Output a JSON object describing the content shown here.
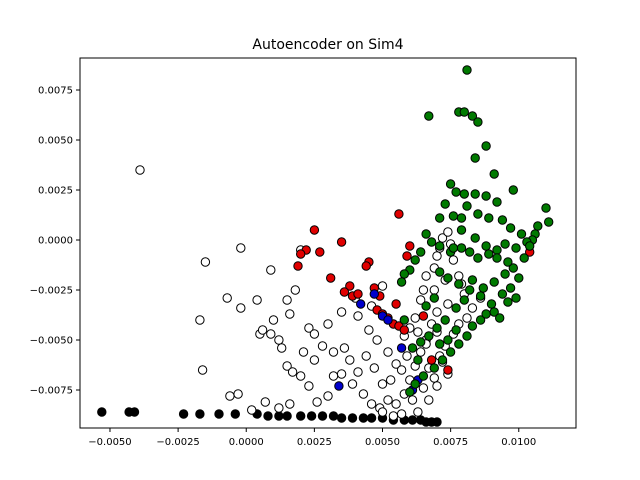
{
  "chart_data": {
    "type": "scatter",
    "title": "Autoencoder on Sim4",
    "xlabel": "",
    "ylabel": "",
    "xlim": [
      -0.0061,
      0.0121
    ],
    "ylim": [
      -0.0094,
      0.0091
    ],
    "grid": false,
    "x_ticks": [
      -0.005,
      -0.0025,
      0.0,
      0.0025,
      0.005,
      0.0075,
      0.01
    ],
    "x_tick_labels": [
      "−0.0050",
      "−0.0025",
      "0.0000",
      "0.0025",
      "0.0050",
      "0.0075",
      "0.0100"
    ],
    "y_ticks": [
      -0.0075,
      -0.005,
      -0.0025,
      0.0,
      0.0025,
      0.005,
      0.0075
    ],
    "y_tick_labels": [
      "−0.0075",
      "−0.0050",
      "−0.0025",
      "0.0000",
      "0.0025",
      "0.0050",
      "0.0075"
    ],
    "series": [
      {
        "color": "#000000",
        "points": [
          [
            -0.0053,
            -0.0086
          ],
          [
            -0.0043,
            -0.0086
          ],
          [
            -0.0041,
            -0.0086
          ],
          [
            -0.0023,
            -0.0087
          ],
          [
            -0.0017,
            -0.0087
          ],
          [
            -0.001,
            -0.0087
          ],
          [
            -0.0004,
            -0.0087
          ],
          [
            0.0004,
            -0.0087
          ],
          [
            0.0008,
            -0.0088
          ],
          [
            0.0012,
            -0.0088
          ],
          [
            0.0015,
            -0.0088
          ],
          [
            0.002,
            -0.0088
          ],
          [
            0.0024,
            -0.0088
          ],
          [
            0.0028,
            -0.0088
          ],
          [
            0.0032,
            -0.0088
          ],
          [
            0.0035,
            -0.0089
          ],
          [
            0.0039,
            -0.0089
          ],
          [
            0.0043,
            -0.0089
          ],
          [
            0.0046,
            -0.0089
          ],
          [
            0.005,
            -0.0089
          ],
          [
            0.0054,
            -0.009
          ],
          [
            0.0058,
            -0.009
          ],
          [
            0.0061,
            -0.009
          ],
          [
            0.0064,
            -0.009
          ],
          [
            0.0066,
            -0.0091
          ],
          [
            0.0068,
            -0.0091
          ],
          [
            0.007,
            -0.0091
          ]
        ]
      },
      {
        "color": "#ffffff",
        "points": [
          [
            -0.0039,
            0.0035
          ],
          [
            -0.0002,
            -0.0004
          ],
          [
            -0.0015,
            -0.0011
          ],
          [
            -0.0007,
            -0.0029
          ],
          [
            -0.0002,
            -0.0034
          ],
          [
            -0.0017,
            -0.004
          ],
          [
            -0.0016,
            -0.0065
          ],
          [
            -0.0006,
            -0.0078
          ],
          [
            -0.0003,
            -0.0077
          ],
          [
            0.0004,
            -0.003
          ],
          [
            0.0009,
            -0.0015
          ],
          [
            0.0015,
            -0.003
          ],
          [
            0.002,
            -0.0005
          ],
          [
            0.0018,
            -0.0025
          ],
          [
            0.0016,
            -0.0037
          ],
          [
            0.0005,
            -0.0047
          ],
          [
            0.0009,
            -0.0047
          ],
          [
            0.0012,
            -0.005
          ],
          [
            0.0006,
            -0.0045
          ],
          [
            0.0013,
            -0.0054
          ],
          [
            0.0015,
            -0.0063
          ],
          [
            0.0023,
            -0.0044
          ],
          [
            0.0025,
            -0.0047
          ],
          [
            0.0028,
            -0.0053
          ],
          [
            0.0032,
            -0.0056
          ],
          [
            0.0036,
            -0.0054
          ],
          [
            0.0038,
            -0.006
          ],
          [
            0.0041,
            -0.0066
          ],
          [
            0.0041,
            -0.0038
          ],
          [
            0.0046,
            -0.0033
          ],
          [
            0.0048,
            -0.005
          ],
          [
            0.0052,
            -0.0056
          ],
          [
            0.0055,
            -0.0062
          ],
          [
            0.0058,
            -0.0048
          ],
          [
            0.006,
            -0.0044
          ],
          [
            0.0062,
            -0.0039
          ],
          [
            0.0064,
            -0.003
          ],
          [
            0.0065,
            -0.0025
          ],
          [
            0.0066,
            -0.0018
          ],
          [
            0.0069,
            -0.0014
          ],
          [
            0.007,
            -0.0008
          ],
          [
            0.0071,
            -0.0004
          ],
          [
            0.0072,
            0.0001
          ],
          [
            0.0074,
            0.0004
          ],
          [
            0.0075,
            -0.0002
          ],
          [
            0.0076,
            -0.001
          ],
          [
            0.0078,
            -0.0018
          ],
          [
            0.0079,
            -0.0022
          ],
          [
            0.008,
            -0.0027
          ],
          [
            0.0074,
            -0.0032
          ],
          [
            0.007,
            -0.0036
          ],
          [
            0.0068,
            -0.0042
          ],
          [
            0.0066,
            -0.005
          ],
          [
            0.0064,
            -0.0056
          ],
          [
            0.0062,
            -0.0063
          ],
          [
            0.006,
            -0.007
          ],
          [
            0.0058,
            -0.0077
          ],
          [
            0.0055,
            -0.0082
          ],
          [
            0.0052,
            -0.008
          ],
          [
            0.0049,
            -0.0084
          ],
          [
            0.0046,
            -0.0082
          ],
          [
            0.0043,
            -0.0077
          ],
          [
            0.0039,
            -0.0072
          ],
          [
            0.0035,
            -0.0067
          ],
          [
            0.0032,
            -0.0068
          ],
          [
            0.003,
            -0.0078
          ],
          [
            0.0026,
            -0.0081
          ],
          [
            0.0023,
            -0.0073
          ],
          [
            0.002,
            -0.0068
          ],
          [
            0.0016,
            -0.0082
          ],
          [
            0.0012,
            -0.0084
          ],
          [
            0.0007,
            -0.0081
          ],
          [
            0.0002,
            -0.0085
          ],
          [
            0.0071,
            -0.0058
          ],
          [
            0.0073,
            -0.0053
          ],
          [
            0.0076,
            -0.0047
          ],
          [
            0.0078,
            -0.0042
          ],
          [
            0.0081,
            -0.0039
          ],
          [
            0.0083,
            -0.0034
          ],
          [
            0.0086,
            -0.0029
          ],
          [
            0.0067,
            -0.0064
          ],
          [
            0.0069,
            -0.0069
          ],
          [
            0.0065,
            -0.0074
          ],
          [
            0.0061,
            -0.008
          ],
          [
            0.0063,
            -0.0086
          ],
          [
            0.0057,
            -0.0087
          ],
          [
            0.0054,
            -0.0088
          ],
          [
            0.005,
            -0.0086
          ],
          [
            0.0069,
            -0.0025
          ],
          [
            0.0073,
            -0.002
          ],
          [
            0.007,
            -0.0046
          ],
          [
            0.0066,
            -0.0052
          ],
          [
            0.0072,
            -0.0061
          ],
          [
            0.0074,
            -0.0067
          ],
          [
            0.007,
            -0.0073
          ],
          [
            0.0067,
            -0.008
          ],
          [
            0.004,
            -0.0029
          ],
          [
            0.005,
            -0.0023
          ],
          [
            0.0035,
            -0.0036
          ],
          [
            0.003,
            -0.0042
          ],
          [
            0.0025,
            -0.006
          ],
          [
            0.0021,
            -0.0056
          ],
          [
            0.0017,
            -0.0066
          ],
          [
            0.001,
            -0.004
          ],
          [
            0.0045,
            -0.0045
          ],
          [
            0.0044,
            -0.0058
          ],
          [
            0.0047,
            -0.0064
          ],
          [
            0.005,
            -0.0072
          ],
          [
            0.0053,
            -0.007
          ],
          [
            0.0057,
            -0.0065
          ],
          [
            0.0059,
            -0.0058
          ],
          [
            0.0063,
            -0.0046
          ]
        ]
      },
      {
        "color": "#e00000",
        "points": [
          [
            0.0025,
            0.0005
          ],
          [
            0.0022,
            -0.0005
          ],
          [
            0.002,
            -0.0007
          ],
          [
            0.0027,
            -0.0006
          ],
          [
            0.0019,
            -0.0013
          ],
          [
            0.0031,
            -0.0019
          ],
          [
            0.0035,
            -0.0001
          ],
          [
            0.0038,
            -0.0023
          ],
          [
            0.0039,
            -0.0028
          ],
          [
            0.0041,
            -0.0027
          ],
          [
            0.0036,
            -0.0026
          ],
          [
            0.0045,
            -0.0011
          ],
          [
            0.0044,
            -0.0013
          ],
          [
            0.0047,
            -0.0024
          ],
          [
            0.0049,
            -0.0028
          ],
          [
            0.0048,
            -0.0035
          ],
          [
            0.005,
            -0.0037
          ],
          [
            0.0052,
            -0.0039
          ],
          [
            0.0054,
            -0.0042
          ],
          [
            0.0056,
            -0.0043
          ],
          [
            0.0058,
            -0.0045
          ],
          [
            0.0055,
            -0.0032
          ],
          [
            0.006,
            -0.0003
          ],
          [
            0.0059,
            -0.0008
          ],
          [
            0.0056,
            0.0013
          ],
          [
            0.0065,
            -0.0038
          ],
          [
            0.0068,
            -0.006
          ],
          [
            0.0074,
            -0.0065
          ],
          [
            0.0104,
            -0.0006
          ]
        ]
      },
      {
        "color": "#0000cc",
        "points": [
          [
            0.0042,
            -0.0032
          ],
          [
            0.0047,
            -0.0027
          ],
          [
            0.005,
            -0.0038
          ],
          [
            0.0052,
            -0.004
          ],
          [
            0.0057,
            -0.0054
          ],
          [
            0.0034,
            -0.0073
          ],
          [
            0.0063,
            -0.007
          ],
          [
            0.0061,
            -0.0075
          ]
        ]
      },
      {
        "color": "#007a00",
        "points": [
          [
            0.0081,
            0.0085
          ],
          [
            0.0067,
            0.0062
          ],
          [
            0.0078,
            0.0064
          ],
          [
            0.008,
            0.0064
          ],
          [
            0.0083,
            0.0062
          ],
          [
            0.0085,
            0.0059
          ],
          [
            0.0088,
            0.0047
          ],
          [
            0.0084,
            0.0041
          ],
          [
            0.0091,
            0.0033
          ],
          [
            0.0075,
            0.0028
          ],
          [
            0.0077,
            0.0024
          ],
          [
            0.008,
            0.0023
          ],
          [
            0.0084,
            0.0023
          ],
          [
            0.0088,
            0.0022
          ],
          [
            0.0098,
            0.0025
          ],
          [
            0.0092,
            0.0019
          ],
          [
            0.0081,
            0.0017
          ],
          [
            0.0085,
            0.0013
          ],
          [
            0.0073,
            0.0018
          ],
          [
            0.0071,
            0.0011
          ],
          [
            0.0076,
            0.0012
          ],
          [
            0.0079,
            0.0011
          ],
          [
            0.0089,
            0.0011
          ],
          [
            0.0094,
            0.001
          ],
          [
            0.0097,
            0.0006
          ],
          [
            0.011,
            0.0016
          ],
          [
            0.0111,
            0.0009
          ],
          [
            0.0107,
            0.0007
          ],
          [
            0.0101,
            0.0003
          ],
          [
            0.0106,
            0.0003
          ],
          [
            0.0105,
            0.0
          ],
          [
            0.0103,
            -0.0001
          ],
          [
            0.0099,
            -0.0004
          ],
          [
            0.0095,
            -0.0002
          ],
          [
            0.0092,
            -0.0005
          ],
          [
            0.0089,
            -0.0007
          ],
          [
            0.0085,
            -0.0009
          ],
          [
            0.0082,
            -0.0006
          ],
          [
            0.0079,
            -0.0004
          ],
          [
            0.0075,
            -0.0006
          ],
          [
            0.0071,
            -0.0003
          ],
          [
            0.0068,
            -0.0001
          ],
          [
            0.0066,
            0.0003
          ],
          [
            0.0064,
            -0.0006
          ],
          [
            0.0062,
            -0.001
          ],
          [
            0.006,
            -0.0015
          ],
          [
            0.0058,
            -0.0017
          ],
          [
            0.0057,
            -0.0021
          ],
          [
            0.0071,
            -0.0016
          ],
          [
            0.0074,
            -0.0019
          ],
          [
            0.0078,
            -0.0022
          ],
          [
            0.0082,
            -0.0025
          ],
          [
            0.0086,
            -0.0028
          ],
          [
            0.009,
            -0.0032
          ],
          [
            0.0094,
            -0.0027
          ],
          [
            0.0097,
            -0.0024
          ],
          [
            0.01,
            -0.0019
          ],
          [
            0.0098,
            -0.0014
          ],
          [
            0.0095,
            -0.0017
          ],
          [
            0.0091,
            -0.0021
          ],
          [
            0.0087,
            -0.0024
          ],
          [
            0.0083,
            -0.002
          ],
          [
            0.008,
            -0.003
          ],
          [
            0.0077,
            -0.0034
          ],
          [
            0.0073,
            -0.004
          ],
          [
            0.007,
            -0.0044
          ],
          [
            0.0067,
            -0.0048
          ],
          [
            0.0064,
            -0.0051
          ],
          [
            0.0061,
            -0.0054
          ],
          [
            0.0058,
            -0.004
          ],
          [
            0.0066,
            -0.0033
          ],
          [
            0.0069,
            -0.0029
          ],
          [
            0.0083,
            -0.0043
          ],
          [
            0.0086,
            -0.004
          ],
          [
            0.0088,
            -0.0037
          ],
          [
            0.0091,
            -0.0036
          ],
          [
            0.0093,
            -0.0039
          ],
          [
            0.0096,
            -0.0031
          ],
          [
            0.0099,
            -0.0029
          ],
          [
            0.0081,
            -0.0048
          ],
          [
            0.0078,
            -0.0052
          ],
          [
            0.0075,
            -0.0056
          ],
          [
            0.0072,
            -0.006
          ],
          [
            0.0069,
            -0.0064
          ],
          [
            0.0065,
            -0.0068
          ],
          [
            0.0062,
            -0.0072
          ],
          [
            0.006,
            -0.0076
          ],
          [
            0.0063,
            -0.006
          ],
          [
            0.0071,
            -0.0052
          ],
          [
            0.0077,
            -0.0045
          ],
          [
            0.0074,
            -0.005
          ],
          [
            0.0076,
            -0.0004
          ],
          [
            0.0079,
            0.0005
          ],
          [
            0.0084,
            0.0001
          ],
          [
            0.0088,
            -0.0003
          ],
          [
            0.0092,
            -0.0009
          ],
          [
            0.0096,
            -0.0011
          ],
          [
            0.0102,
            -0.0009
          ],
          [
            0.0104,
            -0.0003
          ]
        ]
      }
    ]
  }
}
